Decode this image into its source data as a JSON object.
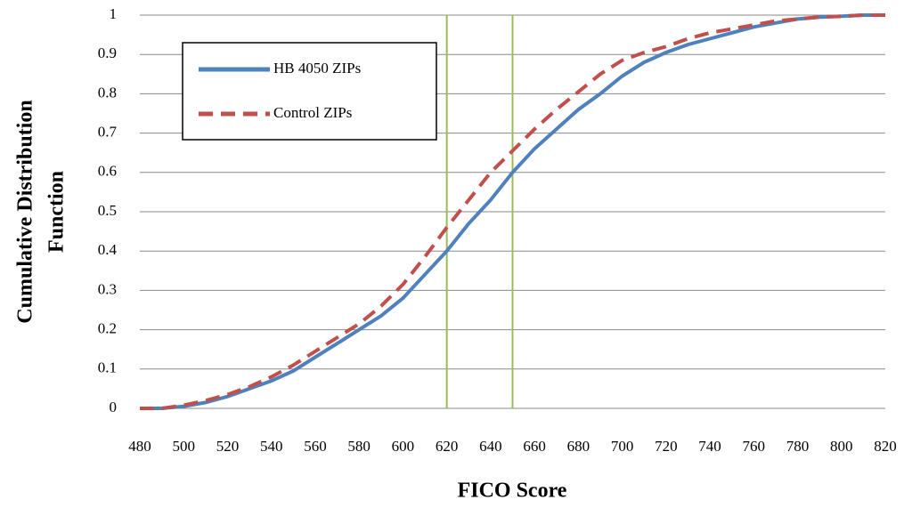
{
  "chart_data": {
    "type": "line",
    "xlabel": "FICO Score",
    "ylabel": [
      "Cumulative Distribution",
      "Function"
    ],
    "x": [
      480,
      490,
      500,
      510,
      520,
      530,
      540,
      550,
      560,
      570,
      580,
      590,
      600,
      610,
      620,
      630,
      640,
      650,
      660,
      670,
      680,
      690,
      700,
      710,
      720,
      730,
      740,
      750,
      760,
      770,
      780,
      790,
      800,
      810,
      820
    ],
    "series": [
      {
        "name": "HB 4050 ZIPs",
        "color": "#4f81bd",
        "style": "solid",
        "values": [
          0,
          0,
          0.005,
          0.015,
          0.03,
          0.05,
          0.07,
          0.095,
          0.13,
          0.165,
          0.2,
          0.235,
          0.28,
          0.34,
          0.4,
          0.47,
          0.53,
          0.6,
          0.66,
          0.71,
          0.76,
          0.8,
          0.845,
          0.88,
          0.905,
          0.925,
          0.94,
          0.955,
          0.97,
          0.98,
          0.99,
          0.995,
          0.997,
          1,
          1
        ]
      },
      {
        "name": "Control ZIPs",
        "color": "#c0504d",
        "style": "dashed",
        "values": [
          0,
          0,
          0.008,
          0.02,
          0.035,
          0.055,
          0.08,
          0.11,
          0.145,
          0.18,
          0.215,
          0.26,
          0.315,
          0.385,
          0.46,
          0.53,
          0.6,
          0.655,
          0.71,
          0.76,
          0.805,
          0.85,
          0.885,
          0.905,
          0.92,
          0.94,
          0.955,
          0.965,
          0.975,
          0.985,
          0.99,
          0.995,
          0.997,
          1,
          1
        ]
      }
    ],
    "vlines": [
      620,
      650
    ],
    "vline_color": "#9bbb59",
    "xlim": [
      480,
      820
    ],
    "xticks": [
      480,
      500,
      520,
      540,
      560,
      580,
      600,
      620,
      640,
      660,
      680,
      700,
      720,
      740,
      760,
      780,
      800,
      820
    ],
    "ylim": [
      0,
      1
    ],
    "yticks": [
      0,
      0.1,
      0.2,
      0.3,
      0.4,
      0.5,
      0.6,
      0.7,
      0.8,
      0.9,
      1
    ],
    "grid": true,
    "legend": "upper left"
  }
}
